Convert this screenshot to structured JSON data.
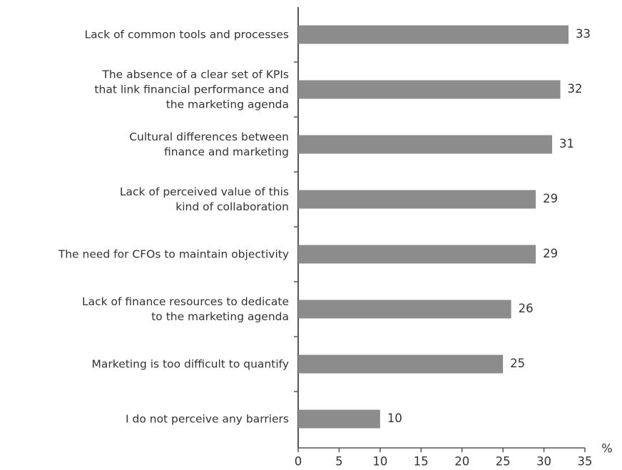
{
  "chart_data": {
    "type": "bar",
    "orientation": "horizontal",
    "categories": [
      "Lack of common tools and processes",
      "The absence of a clear set of KPIs\nthat link financial performance and\nthe marketing agenda",
      "Cultural differences between\nfinance and marketing",
      "Lack of perceived value of this\nkind of collaboration",
      "The need for CFOs to maintain objectivity",
      "Lack of finance resources to dedicate\nto the marketing agenda",
      "Marketing is too difficult to quantify",
      "I do not perceive any barriers"
    ],
    "values": [
      33,
      32,
      31,
      29,
      29,
      26,
      25,
      10
    ],
    "color": "#8c8c8c",
    "xlabel": "%",
    "xlim": [
      0,
      35
    ],
    "xticks": [
      0,
      5,
      10,
      15,
      20,
      25,
      30,
      35
    ]
  }
}
